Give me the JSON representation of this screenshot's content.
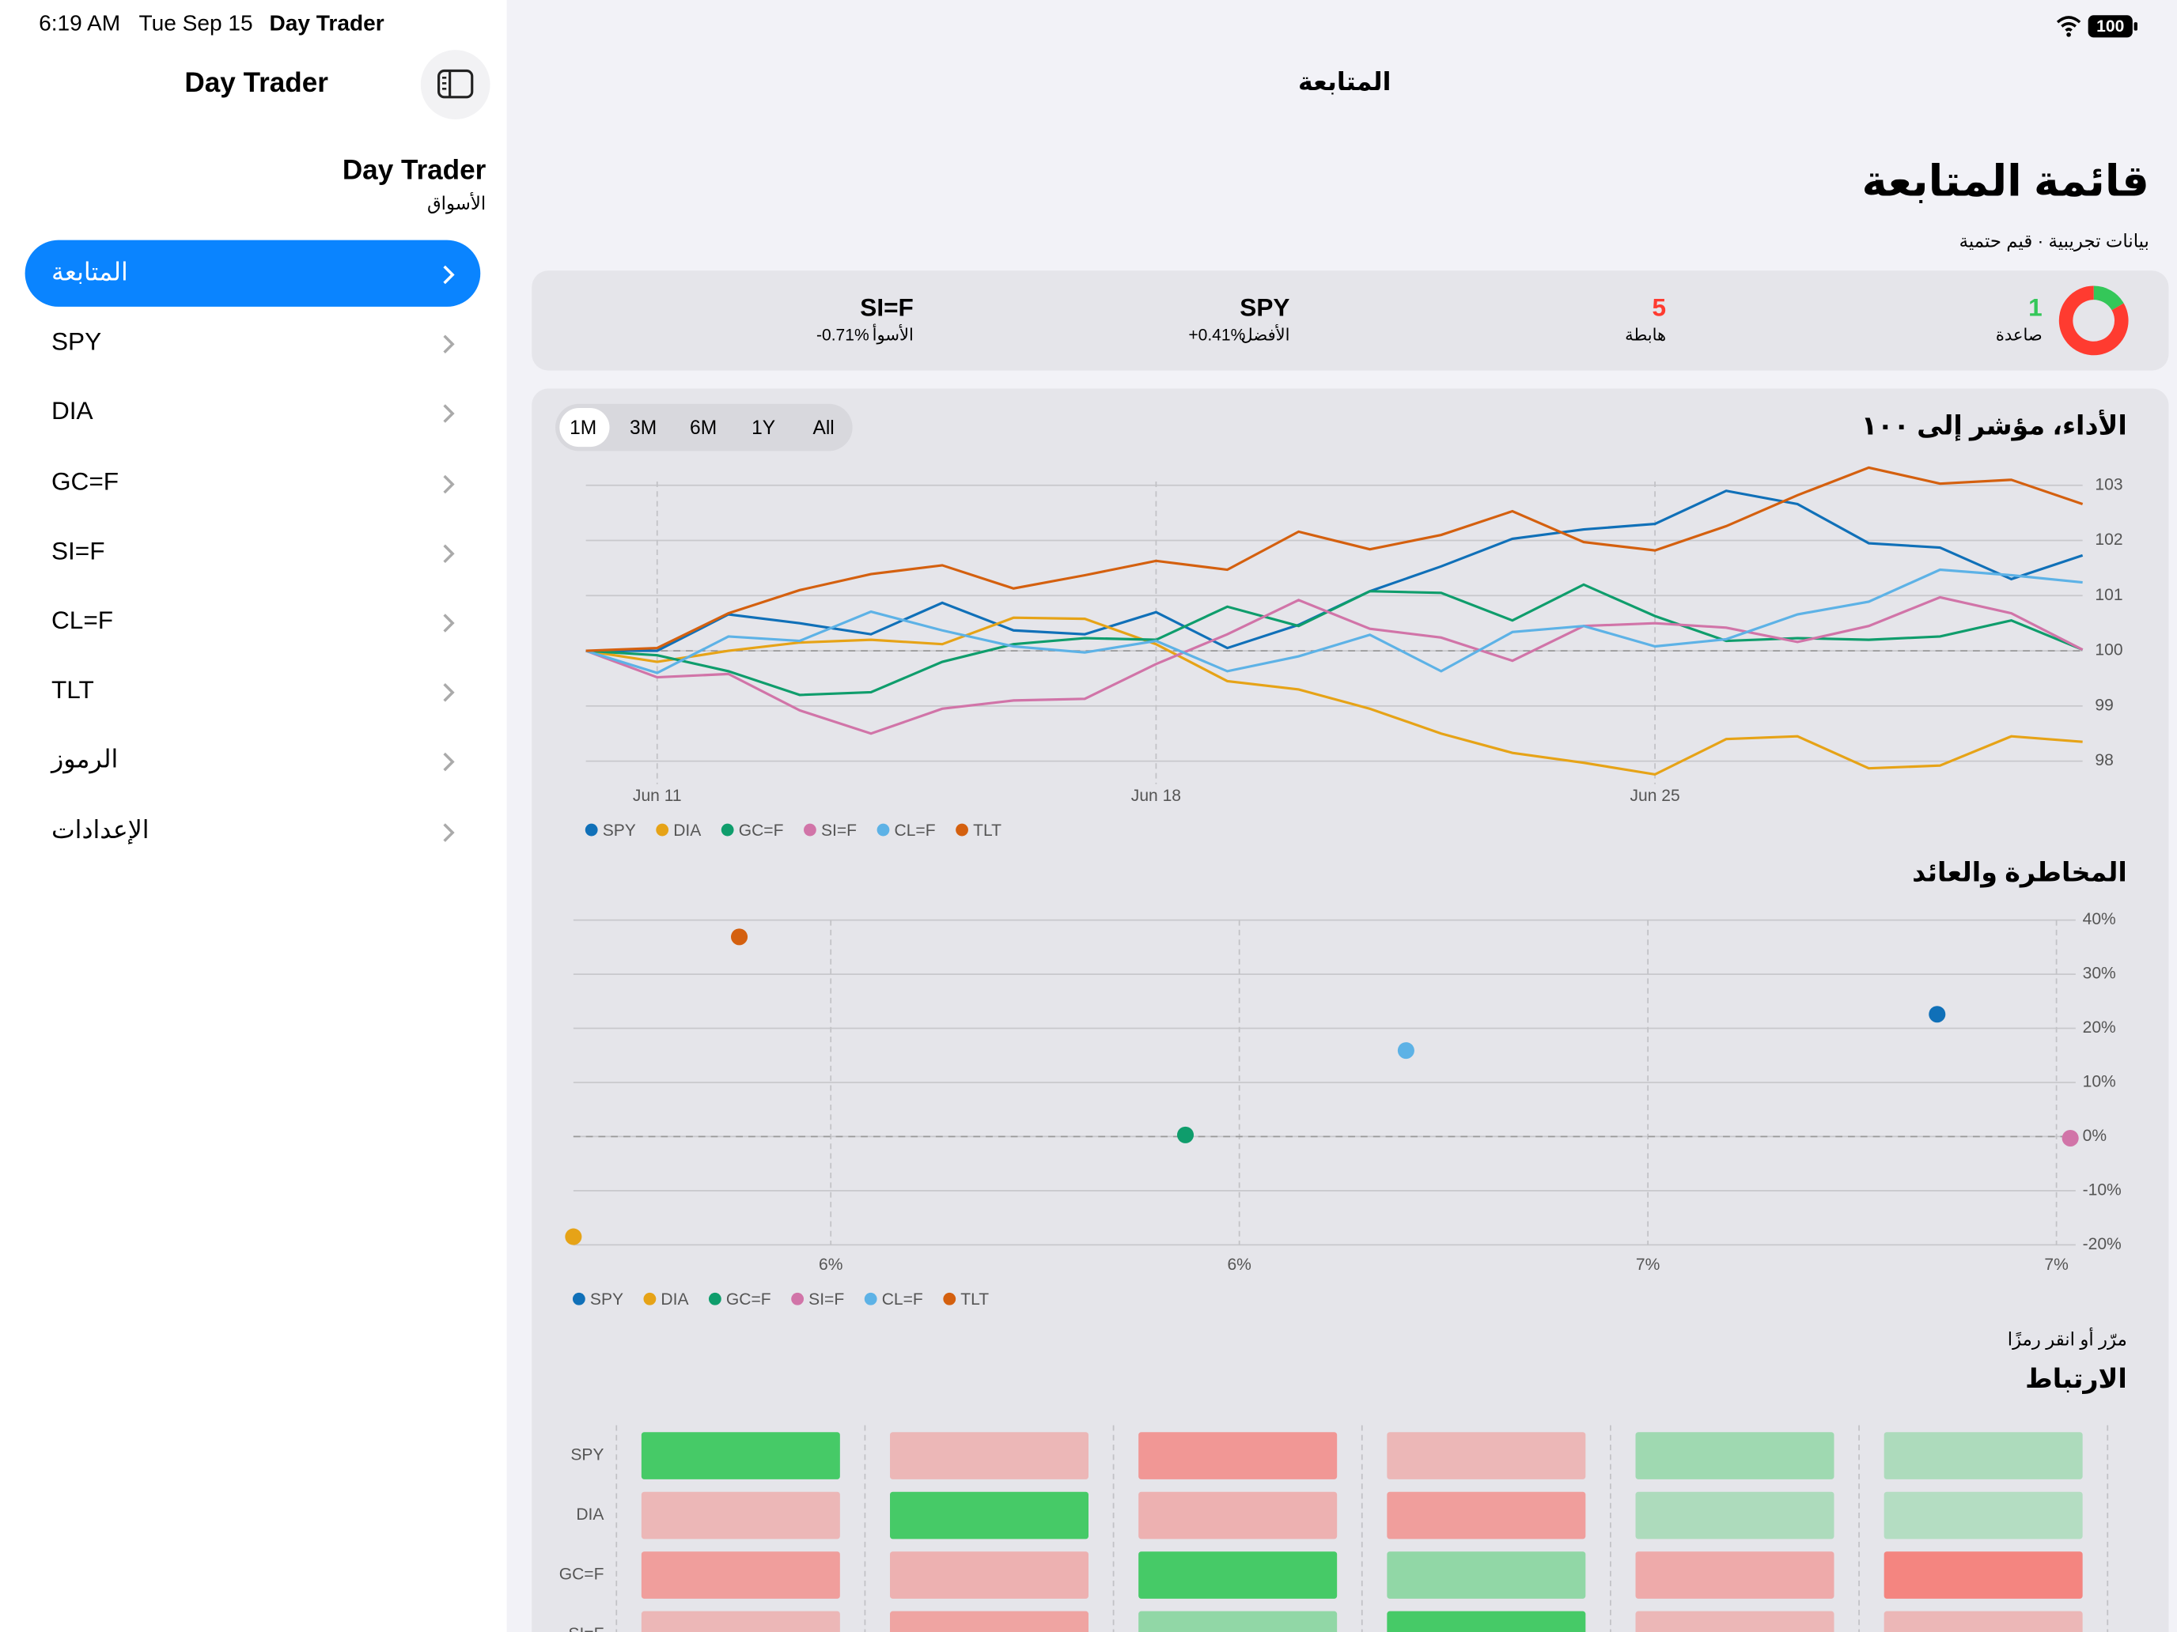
{
  "status_bar": {
    "time": "6:19 AM",
    "date": "Tue Sep 15",
    "app": "Day Trader",
    "battery": "100"
  },
  "sidebar": {
    "title": "Day Trader",
    "header": "Day Trader",
    "subtitle": "الأسواق",
    "items": [
      "المتابعة",
      "SPY",
      "DIA",
      "GC=F",
      "SI=F",
      "CL=F",
      "TLT",
      "الرموز",
      "الإعدادات"
    ]
  },
  "main": {
    "nav_title": "المتابعة",
    "title": "قائمة المتابعة",
    "subtitle": "بيانات تجريبية · قيم حتمية",
    "summary": {
      "up": {
        "count": 1,
        "label": "صاعدة",
        "color": "#34c759"
      },
      "down": {
        "count": 5,
        "label": "هابطة",
        "color": "#ff3b30"
      },
      "best": {
        "symbol": "SPY",
        "label": "الأفضل",
        "change": "+0.41%"
      },
      "worst": {
        "symbol": "SI=F",
        "label": "الأسوأ",
        "change": "-0.71%"
      }
    },
    "ranges": [
      "1M",
      "3M",
      "6M",
      "1Y",
      "All"
    ],
    "hint": "مرّر أو انقر رمزًا"
  },
  "chart_data": [
    {
      "type": "line",
      "title": "الأداء، مؤشر إلى ١٠٠",
      "categories": [
        null,
        "Jun 11",
        null,
        null,
        null,
        null,
        null,
        null,
        "Jun 18",
        null,
        null,
        null,
        null,
        null,
        null,
        "Jun 25",
        null,
        null,
        null,
        null,
        null,
        null
      ],
      "ylim": [
        97.7,
        103.4
      ],
      "yticks": [
        98,
        99,
        100,
        101,
        102,
        103
      ],
      "grid": true,
      "reference_line": 100,
      "series": [
        {
          "name": "SPY",
          "color": "#1070b8",
          "values": [
            100,
            100.0,
            100.66,
            100.5,
            100.3,
            100.87,
            100.37,
            100.3,
            100.7,
            100.05,
            100.47,
            101.08,
            101.53,
            102.03,
            102.2,
            102.3,
            102.9,
            102.66,
            101.95,
            101.87,
            101.3,
            101.73
          ]
        },
        {
          "name": "DIA",
          "color": "#e6a317",
          "values": [
            100,
            99.8,
            100.0,
            100.15,
            100.2,
            100.12,
            100.6,
            100.58,
            100.12,
            99.45,
            99.3,
            98.95,
            98.5,
            98.15,
            97.97,
            97.76,
            98.4,
            98.45,
            97.87,
            97.92,
            98.45,
            98.35
          ]
        },
        {
          "name": "GC=F",
          "color": "#0f9d6c",
          "values": [
            100,
            99.92,
            99.63,
            99.2,
            99.25,
            99.8,
            100.12,
            100.23,
            100.2,
            100.8,
            100.45,
            101.08,
            101.05,
            100.55,
            101.2,
            100.63,
            100.18,
            100.23,
            100.2,
            100.26,
            100.55,
            100.02
          ]
        },
        {
          "name": "SI=F",
          "color": "#d174a8",
          "values": [
            100,
            99.52,
            99.58,
            98.92,
            98.5,
            98.95,
            99.1,
            99.13,
            99.76,
            100.3,
            100.92,
            100.4,
            100.24,
            99.82,
            100.45,
            100.5,
            100.42,
            100.16,
            100.45,
            100.97,
            100.68,
            100.02
          ]
        },
        {
          "name": "CL=F",
          "color": "#5db2e6",
          "values": [
            100,
            99.6,
            100.26,
            100.18,
            100.71,
            100.37,
            100.08,
            99.97,
            100.18,
            99.63,
            99.9,
            100.29,
            99.63,
            100.34,
            100.45,
            100.08,
            100.21,
            100.66,
            100.89,
            101.47,
            101.37,
            101.24
          ]
        },
        {
          "name": "TLT",
          "color": "#d4600f",
          "values": [
            100,
            100.05,
            100.68,
            101.1,
            101.39,
            101.55,
            101.13,
            101.37,
            101.63,
            101.47,
            102.16,
            101.84,
            102.1,
            102.53,
            101.97,
            101.82,
            102.26,
            102.82,
            103.32,
            103.03,
            103.1,
            102.66
          ]
        }
      ]
    },
    {
      "type": "scatter",
      "title": "المخاطرة والعائد",
      "xlim": [
        5.435,
        7.282
      ],
      "xticks": [
        {
          "value": 5.75,
          "label": "6%"
        },
        {
          "value": 6.25,
          "label": "6%"
        },
        {
          "value": 6.75,
          "label": "7%"
        },
        {
          "value": 7.25,
          "label": "7%"
        }
      ],
      "ylim": [
        -20,
        40
      ],
      "yticks": [
        {
          "value": 40,
          "label": "40%"
        },
        {
          "value": 30,
          "label": "30%"
        },
        {
          "value": 20,
          "label": "20%"
        },
        {
          "value": 10,
          "label": "10%"
        },
        {
          "value": 0,
          "label": "0%"
        },
        {
          "value": -10,
          "label": "-10%"
        },
        {
          "value": -20,
          "label": "-20%"
        }
      ],
      "grid": true,
      "reference_line": 0,
      "series": [
        {
          "name": "SPY",
          "color": "#1070b8",
          "x": 7.104,
          "y": 22.6
        },
        {
          "name": "DIA",
          "color": "#e6a317",
          "x": 5.435,
          "y": -18.5
        },
        {
          "name": "GC=F",
          "color": "#0f9d6c",
          "x": 6.184,
          "y": 0.3
        },
        {
          "name": "SI=F",
          "color": "#d174a8",
          "x": 7.267,
          "y": -0.3
        },
        {
          "name": "CL=F",
          "color": "#5db2e6",
          "x": 6.454,
          "y": 15.9
        },
        {
          "name": "TLT",
          "color": "#d4600f",
          "x": 5.638,
          "y": 36.9
        }
      ]
    },
    {
      "type": "heatmap",
      "title": "الارتباط",
      "rows": [
        "SPY",
        "DIA",
        "GC=F",
        "SI=F"
      ],
      "positive_color": "#34c759",
      "negative_color": "#ff3b30",
      "values": [
        [
          1,
          -0.2,
          -0.45,
          -0.2,
          0.35,
          0.25
        ],
        [
          -0.2,
          1,
          -0.25,
          -0.4,
          0.25,
          0.2
        ],
        [
          -0.4,
          -0.25,
          1,
          0.45,
          -0.3,
          -0.6
        ],
        [
          -0.2,
          -0.35,
          0.45,
          1,
          -0.2,
          -0.2
        ]
      ]
    }
  ]
}
